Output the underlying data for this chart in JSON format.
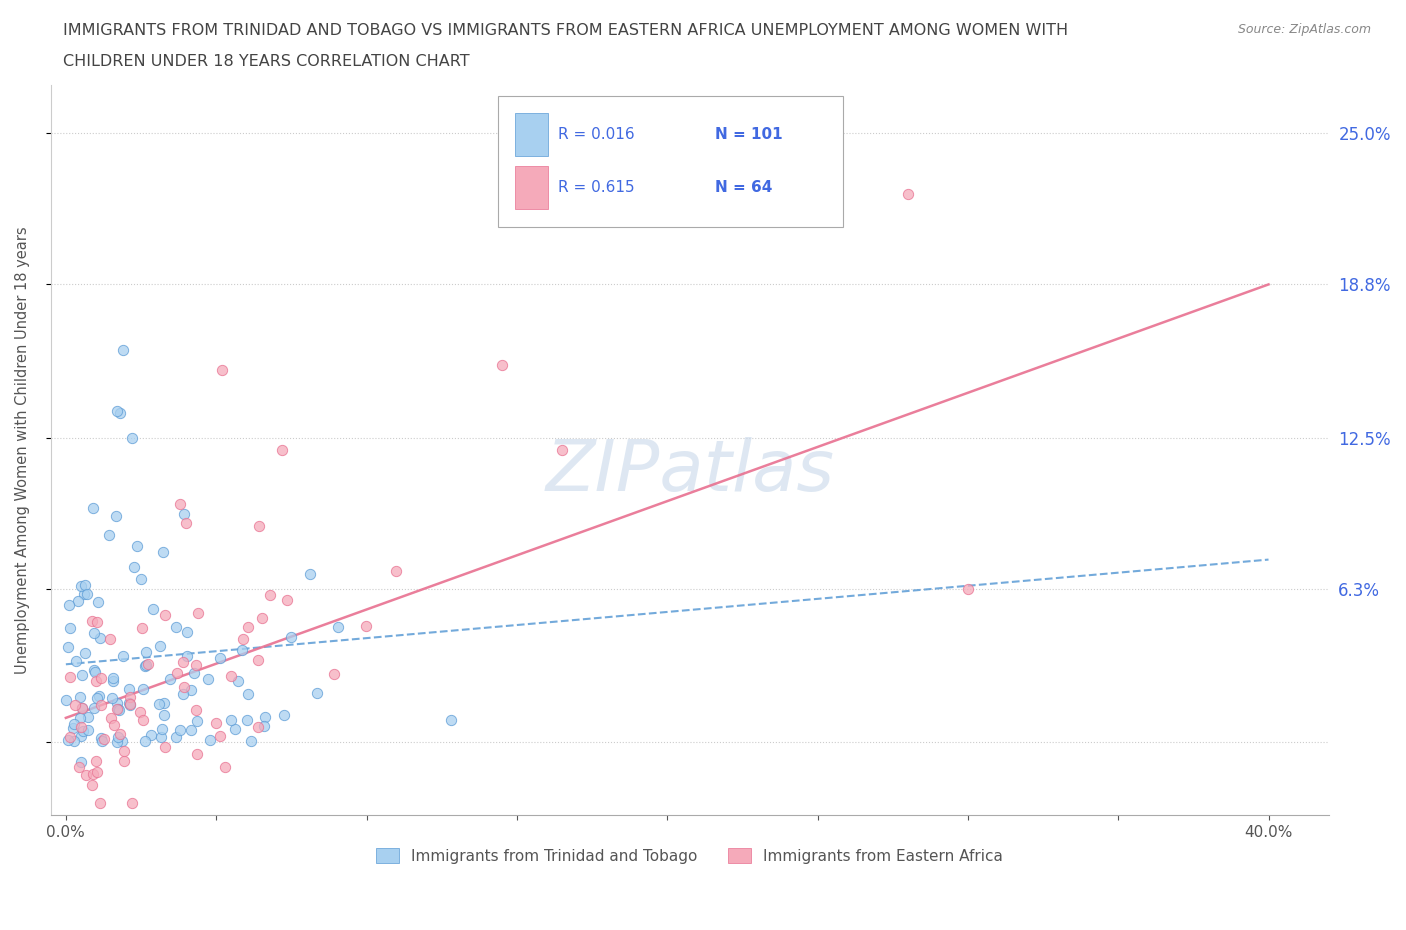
{
  "title_line1": "IMMIGRANTS FROM TRINIDAD AND TOBAGO VS IMMIGRANTS FROM EASTERN AFRICA UNEMPLOYMENT AMONG WOMEN WITH",
  "title_line2": "CHILDREN UNDER 18 YEARS CORRELATION CHART",
  "source": "Source: ZipAtlas.com",
  "watermark": "ZIPatlas",
  "ylabel": "Unemployment Among Women with Children Under 18 years",
  "xlim_min": -0.005,
  "xlim_max": 0.42,
  "ylim_min": -0.03,
  "ylim_max": 0.27,
  "ytick_positions": [
    0.0,
    0.063,
    0.125,
    0.188,
    0.25
  ],
  "ytick_labels": [
    "",
    "6.3%",
    "12.5%",
    "18.8%",
    "25.0%"
  ],
  "xtick_positions": [
    0.0,
    0.05,
    0.1,
    0.15,
    0.2,
    0.25,
    0.3,
    0.35,
    0.4
  ],
  "xtick_labels": [
    "0.0%",
    "",
    "",
    "",
    "",
    "",
    "",
    "",
    "40.0%"
  ],
  "series1_color": "#A8D0F0",
  "series2_color": "#F5AABA",
  "series1_edge": "#5B9BD5",
  "series2_edge": "#E87090",
  "trend1_color": "#5B9BD5",
  "trend2_color": "#E87090",
  "legend_color": "#4169E1",
  "title_color": "#444444",
  "source_color": "#888888",
  "background_color": "#FFFFFF",
  "grid_color": "#CCCCCC",
  "watermark_color": "#C8D8EA",
  "n1": 101,
  "n2": 64,
  "R1": 0.016,
  "R2": 0.615,
  "trend1_x0": 0.0,
  "trend1_x1": 0.4,
  "trend1_y0": 0.032,
  "trend1_y1": 0.075,
  "trend2_x0": 0.0,
  "trend2_x1": 0.4,
  "trend2_y0": 0.01,
  "trend2_y1": 0.188
}
